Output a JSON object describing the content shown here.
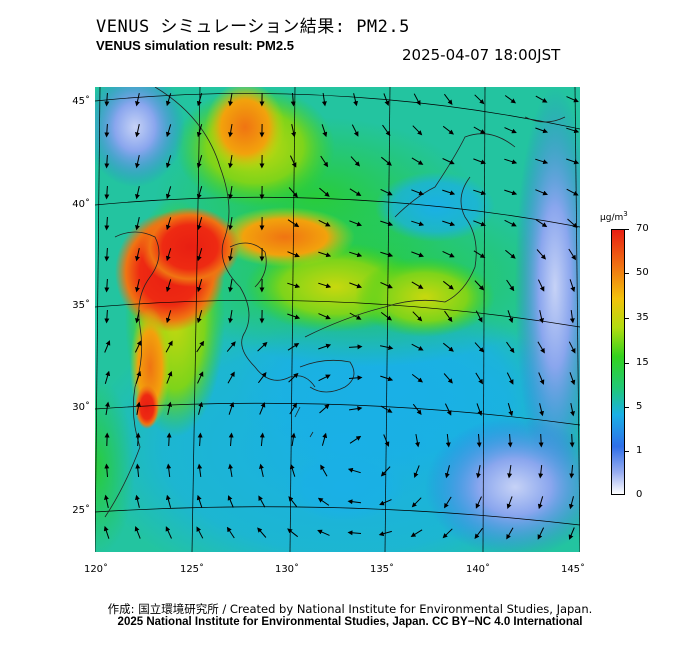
{
  "header": {
    "title_jp": "VENUS シミュレーション結果: PM2.5",
    "title_en": "VENUS simulation result: PM2.5",
    "timestamp": "2025-04-07 18:00JST"
  },
  "map": {
    "lat_ticks": [
      "45˚",
      "40˚",
      "35˚",
      "30˚",
      "25˚"
    ],
    "lon_ticks": [
      "120˚",
      "125˚",
      "130˚",
      "135˚",
      "140˚",
      "145˚"
    ],
    "field": "PM2.5 concentration with wind vectors",
    "high_concentration_region": "Yellow Sea / Bohai / northeast China coast (red, ~70)"
  },
  "colorbar": {
    "unit": "μg/m",
    "unit_sup": "3",
    "labels": [
      "70",
      "50",
      "35",
      "15",
      "5",
      "1",
      "0"
    ],
    "colors": [
      "#e81f12",
      "#f07412",
      "#f2c20c",
      "#33d21e",
      "#1ab0e6",
      "#2f6fe8",
      "#ffffff"
    ]
  },
  "footer": {
    "credit_line": "作成: 国立環境研究所 / Created by National Institute for Environmental Studies, Japan.",
    "license_line": "2025 National Institute for Environmental Studies, Japan. CC BY−NC 4.0 International"
  }
}
